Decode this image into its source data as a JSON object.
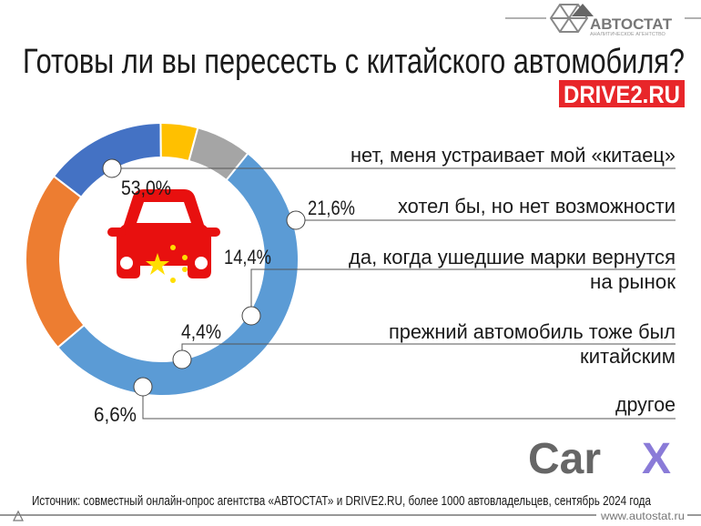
{
  "header": {
    "title": "Готовы ли вы пересесть с китайского автомобиля?",
    "brand_logo": "АВТОСТАТ",
    "brand_subtitle": "АНАЛИТИЧЕСКОЕ АГЕНТСТВО",
    "partner_logo": "DRIVE2.RU"
  },
  "chart_data": {
    "type": "pie",
    "variant": "donut",
    "categories": [
      "нет, меня устраивает мой «китаец»",
      "хотел бы, но нет возможности",
      "да, когда ушедшие марки вернутся на рынок",
      "прежний автомобиль тоже был китайским",
      "другое"
    ],
    "values": [
      53.0,
      21.6,
      14.4,
      4.4,
      6.6
    ],
    "value_labels": [
      "53,0%",
      "21,6%",
      "14,4%",
      "4,4%",
      "6,6%"
    ],
    "colors": [
      "#5b9bd5",
      "#ed7d31",
      "#4472c4",
      "#ffc000",
      "#a5a5a5"
    ],
    "label_lines": [
      [
        "нет, меня устраивает мой «китаец»"
      ],
      [
        "хотел бы, но нет возможности"
      ],
      [
        "да, когда ушедшие марки вернутся",
        "на рынок"
      ],
      [
        "прежний автомобиль тоже был",
        "китайским"
      ],
      [
        "другое"
      ]
    ]
  },
  "center_icon": "car-with-chinese-flag-icon",
  "sponsor_logo": {
    "text_a": "Car",
    "text_b": "X",
    "color_a": "#666666",
    "color_b": "#8a7bd8"
  },
  "footer": {
    "source": "Источник: совместный онлайн-опрос агентства «АВТОСТАТ» и DRIVE2.RU, более 1000 автовладельцев, сентябрь 2024 года",
    "url": "www.autostat.ru"
  }
}
